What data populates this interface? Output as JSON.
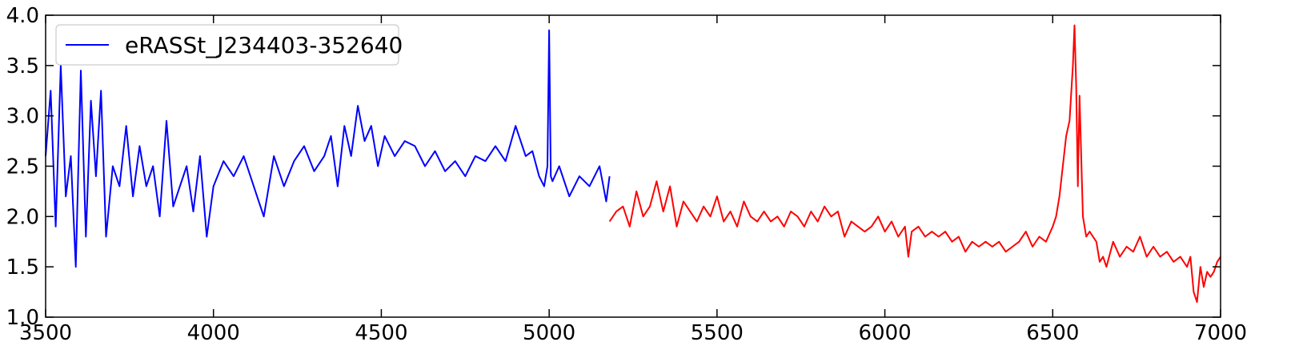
{
  "chart_data": {
    "type": "line",
    "title": "",
    "xlabel": "",
    "ylabel": "",
    "xlim": [
      3500,
      7000
    ],
    "ylim": [
      1.0,
      4.0
    ],
    "x_ticks": [
      3500,
      4000,
      4500,
      5000,
      5500,
      6000,
      6500,
      7000
    ],
    "x_tick_labels": [
      "3500",
      "4000",
      "4500",
      "5000",
      "5500",
      "6000",
      "6500",
      "7000"
    ],
    "y_ticks": [
      1.0,
      1.5,
      2.0,
      2.5,
      3.0,
      3.5,
      4.0
    ],
    "y_tick_labels": [
      "1.0",
      "1.5",
      "2.0",
      "2.5",
      "3.0",
      "3.5",
      "4.0"
    ],
    "grid": false,
    "legend_position": "top-left",
    "series": [
      {
        "name": "eRASSt_J234403-352640",
        "color": "#0000ff",
        "in_legend": true,
        "x": [
          3500,
          3515,
          3530,
          3545,
          3560,
          3575,
          3590,
          3605,
          3620,
          3635,
          3650,
          3665,
          3680,
          3700,
          3720,
          3740,
          3760,
          3780,
          3800,
          3820,
          3840,
          3860,
          3880,
          3900,
          3920,
          3940,
          3960,
          3980,
          4000,
          4030,
          4060,
          4090,
          4110,
          4130,
          4150,
          4180,
          4210,
          4240,
          4270,
          4300,
          4330,
          4350,
          4370,
          4390,
          4410,
          4430,
          4450,
          4470,
          4490,
          4510,
          4540,
          4570,
          4600,
          4630,
          4660,
          4690,
          4720,
          4750,
          4780,
          4810,
          4840,
          4870,
          4900,
          4930,
          4950,
          4970,
          4985,
          4995,
          5000,
          5005,
          5010,
          5030,
          5060,
          5090,
          5120,
          5150,
          5170,
          5180
        ],
        "y": [
          2.6,
          3.25,
          1.9,
          3.5,
          2.2,
          2.6,
          1.5,
          3.45,
          1.8,
          3.15,
          2.4,
          3.25,
          1.8,
          2.5,
          2.3,
          2.9,
          2.2,
          2.7,
          2.3,
          2.5,
          2.0,
          2.95,
          2.1,
          2.3,
          2.5,
          2.05,
          2.6,
          1.8,
          2.3,
          2.55,
          2.4,
          2.6,
          2.4,
          2.2,
          2.0,
          2.6,
          2.3,
          2.55,
          2.7,
          2.45,
          2.6,
          2.8,
          2.3,
          2.9,
          2.6,
          3.1,
          2.75,
          2.9,
          2.5,
          2.8,
          2.6,
          2.75,
          2.7,
          2.5,
          2.65,
          2.45,
          2.55,
          2.4,
          2.6,
          2.55,
          2.7,
          2.55,
          2.9,
          2.6,
          2.65,
          2.4,
          2.3,
          2.5,
          3.85,
          2.4,
          2.35,
          2.5,
          2.2,
          2.4,
          2.3,
          2.5,
          2.15,
          2.4
        ]
      },
      {
        "name": "red segment",
        "color": "#ff0000",
        "in_legend": false,
        "x": [
          5180,
          5200,
          5220,
          5240,
          5260,
          5280,
          5300,
          5320,
          5340,
          5360,
          5380,
          5400,
          5420,
          5440,
          5460,
          5480,
          5500,
          5520,
          5540,
          5560,
          5580,
          5600,
          5620,
          5640,
          5660,
          5680,
          5700,
          5720,
          5740,
          5760,
          5780,
          5800,
          5820,
          5840,
          5860,
          5880,
          5900,
          5920,
          5940,
          5960,
          5980,
          6000,
          6020,
          6040,
          6060,
          6070,
          6080,
          6100,
          6120,
          6140,
          6160,
          6180,
          6200,
          6220,
          6240,
          6260,
          6280,
          6300,
          6320,
          6340,
          6360,
          6380,
          6400,
          6420,
          6440,
          6460,
          6480,
          6500,
          6510,
          6520,
          6530,
          6540,
          6550,
          6560,
          6565,
          6570,
          6575,
          6580,
          6590,
          6600,
          6610,
          6620,
          6630,
          6640,
          6650,
          6660,
          6680,
          6700,
          6720,
          6740,
          6760,
          6780,
          6800,
          6820,
          6840,
          6860,
          6880,
          6900,
          6910,
          6920,
          6930,
          6940,
          6950,
          6960,
          6970,
          6980,
          6990,
          7000
        ],
        "y": [
          1.95,
          2.05,
          2.1,
          1.9,
          2.25,
          2.0,
          2.1,
          2.35,
          2.05,
          2.3,
          1.9,
          2.15,
          2.05,
          1.95,
          2.1,
          2.0,
          2.2,
          1.95,
          2.05,
          1.9,
          2.15,
          2.0,
          1.95,
          2.05,
          1.95,
          2.0,
          1.9,
          2.05,
          2.0,
          1.9,
          2.05,
          1.95,
          2.1,
          2.0,
          2.05,
          1.8,
          1.95,
          1.9,
          1.85,
          1.9,
          2.0,
          1.85,
          1.95,
          1.8,
          1.9,
          1.6,
          1.85,
          1.9,
          1.8,
          1.85,
          1.8,
          1.85,
          1.75,
          1.8,
          1.65,
          1.75,
          1.7,
          1.75,
          1.7,
          1.75,
          1.65,
          1.7,
          1.75,
          1.85,
          1.7,
          1.8,
          1.75,
          1.9,
          2.0,
          2.2,
          2.5,
          2.8,
          2.95,
          3.5,
          3.9,
          3.3,
          2.3,
          3.2,
          2.0,
          1.8,
          1.85,
          1.8,
          1.75,
          1.55,
          1.6,
          1.5,
          1.75,
          1.6,
          1.7,
          1.65,
          1.8,
          1.6,
          1.7,
          1.6,
          1.65,
          1.55,
          1.6,
          1.5,
          1.6,
          1.25,
          1.15,
          1.5,
          1.3,
          1.45,
          1.4,
          1.45,
          1.55,
          1.6
        ]
      }
    ]
  }
}
